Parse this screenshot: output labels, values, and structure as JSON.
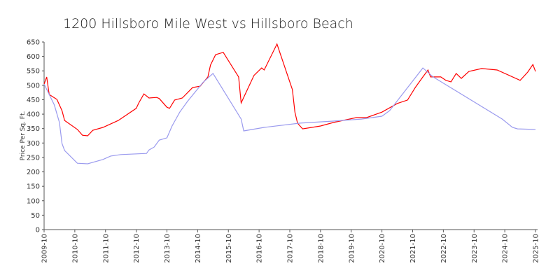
{
  "chart_data": {
    "type": "line",
    "title": "1200 Hillsboro Mile West vs Hillsboro Beach",
    "y_label": "Price Per Sq. Ft.",
    "xlim": [
      "2009-10",
      "2025-10"
    ],
    "xticks": [
      "2009-10",
      "2010-10",
      "2011-10",
      "2012-10",
      "2013-10",
      "2014-10",
      "2015-10",
      "2016-10",
      "2017-10",
      "2018-10",
      "2019-10",
      "2020-10",
      "2021-10",
      "2022-10",
      "2023-10",
      "2024-10",
      "2025-10"
    ],
    "ylim": [
      0,
      650
    ],
    "yticks": [
      0,
      50,
      100,
      150,
      200,
      250,
      300,
      350,
      400,
      450,
      500,
      550,
      600,
      650
    ],
    "grid": false,
    "series": [
      {
        "color": "#ff0000",
        "x": [
          "2009-10",
          "2009-11",
          "2009-12",
          "2010-03",
          "2010-05",
          "2010-06",
          "2010-11",
          "2011-01",
          "2011-03",
          "2011-05",
          "2011-09",
          "2012-03",
          "2012-10",
          "2012-11",
          "2013-01",
          "2013-03",
          "2013-06",
          "2013-07",
          "2013-10",
          "2013-11",
          "2014-01",
          "2014-04",
          "2014-08",
          "2014-11",
          "2015-02",
          "2015-03",
          "2015-05",
          "2015-08",
          "2016-02",
          "2016-03",
          "2016-08",
          "2016-11",
          "2016-12",
          "2017-05",
          "2017-11",
          "2017-12",
          "2018-01",
          "2018-03",
          "2018-10",
          "2019-03",
          "2019-12",
          "2020-04",
          "2020-10",
          "2021-04",
          "2021-08",
          "2021-11",
          "2022-02",
          "2022-04",
          "2022-05",
          "2022-09",
          "2022-11",
          "2023-01",
          "2023-03",
          "2023-05",
          "2023-08",
          "2024-01",
          "2024-07",
          "2025-04",
          "2025-07",
          "2025-09",
          "2025-10"
        ],
        "values": [
          504,
          529,
          468,
          451,
          412,
          378,
          347,
          327,
          325,
          344,
          354,
          378,
          420,
          439,
          470,
          456,
          458,
          454,
          424,
          420,
          449,
          456,
          492,
          497,
          529,
          570,
          606,
          614,
          529,
          439,
          534,
          560,
          553,
          643,
          485,
          407,
          369,
          349,
          359,
          371,
          388,
          388,
          407,
          437,
          449,
          492,
          529,
          553,
          529,
          529,
          517,
          512,
          541,
          524,
          548,
          558,
          553,
          517,
          546,
          572,
          548
        ]
      },
      {
        "color": "#9a9aee",
        "x": [
          "2009-10",
          "2009-12",
          "2010-02",
          "2010-04",
          "2010-05",
          "2010-06",
          "2010-11",
          "2011-03",
          "2011-09",
          "2011-12",
          "2012-04",
          "2013-02",
          "2013-03",
          "2013-05",
          "2013-07",
          "2013-10",
          "2013-12",
          "2014-03",
          "2014-06",
          "2014-12",
          "2015-04",
          "2016-03",
          "2016-04",
          "2016-12",
          "2018-02",
          "2019-03",
          "2020-02",
          "2020-10",
          "2021-01",
          "2022-02",
          "2022-06",
          "2024-09",
          "2025-01",
          "2025-03",
          "2025-10"
        ],
        "values": [
          504,
          468,
          432,
          371,
          298,
          274,
          230,
          228,
          243,
          255,
          260,
          264,
          276,
          286,
          310,
          318,
          359,
          407,
          444,
          509,
          541,
          383,
          342,
          354,
          369,
          376,
          383,
          393,
          412,
          560,
          529,
          383,
          354,
          349,
          347
        ]
      }
    ]
  }
}
